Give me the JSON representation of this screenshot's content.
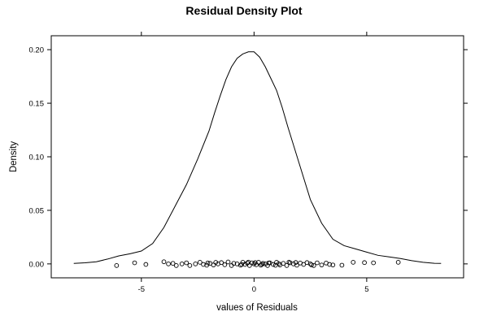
{
  "chart_data": {
    "type": "line",
    "title": "Residual Density Plot",
    "xlabel": "values of Residuals",
    "ylabel": "Density",
    "xlim": [
      -9,
      9.3
    ],
    "ylim": [
      -0.013,
      0.213
    ],
    "grid": false,
    "legend": "none",
    "x_ticks": [
      -5,
      0,
      5
    ],
    "x_tick_labels": [
      "-5",
      "0",
      "5"
    ],
    "y_ticks": [
      0,
      0.05,
      0.1,
      0.15,
      0.2
    ],
    "y_tick_labels": [
      "0.00",
      "0.05",
      "0.10",
      "0.15",
      "0.20"
    ],
    "series": [
      {
        "kind": "density-curve",
        "x": [
          -8.0,
          -7.5,
          -7.0,
          -6.5,
          -6.0,
          -5.5,
          -5.0,
          -4.5,
          -4.0,
          -3.5,
          -3.0,
          -2.5,
          -2.0,
          -1.75,
          -1.5,
          -1.25,
          -1.0,
          -0.75,
          -0.5,
          -0.25,
          0.0,
          0.25,
          0.5,
          0.75,
          1.0,
          1.25,
          1.5,
          1.75,
          2.0,
          2.5,
          3.0,
          3.5,
          4.0,
          4.5,
          5.0,
          5.5,
          6.0,
          6.5,
          7.0,
          7.5,
          8.0,
          8.3
        ],
        "y": [
          0.0005,
          0.001,
          0.002,
          0.0045,
          0.0075,
          0.0095,
          0.012,
          0.019,
          0.034,
          0.054,
          0.074,
          0.098,
          0.124,
          0.141,
          0.157,
          0.172,
          0.184,
          0.192,
          0.196,
          0.198,
          0.198,
          0.193,
          0.184,
          0.173,
          0.162,
          0.146,
          0.128,
          0.111,
          0.094,
          0.06,
          0.038,
          0.023,
          0.017,
          0.014,
          0.011,
          0.008,
          0.0065,
          0.005,
          0.003,
          0.0015,
          0.0006,
          0.0005
        ]
      },
      {
        "kind": "rug-points",
        "points": [
          [
            -6.1,
            -0.0015
          ],
          [
            -5.3,
            0.001
          ],
          [
            -4.8,
            -0.0005
          ],
          [
            -4.0,
            0.002
          ],
          [
            -3.8,
            0.0
          ],
          [
            -3.6,
            0.0005
          ],
          [
            -3.45,
            -0.0015
          ],
          [
            -3.2,
            0.0
          ],
          [
            -3.0,
            0.001
          ],
          [
            -2.85,
            -0.0015
          ],
          [
            -2.6,
            0.0
          ],
          [
            -2.4,
            0.0015
          ],
          [
            -2.25,
            -0.0005
          ],
          [
            -2.1,
            -0.0012
          ],
          [
            -1.95,
            0.0005
          ],
          [
            -1.8,
            -0.001
          ],
          [
            -1.6,
            0.0
          ],
          [
            -1.45,
            0.0012
          ],
          [
            -1.3,
            -0.0008
          ],
          [
            -1.15,
            0.0018
          ],
          [
            -1.0,
            -0.0015
          ],
          [
            -0.9,
            0.0005
          ],
          [
            -0.75,
            0.0
          ],
          [
            -0.6,
            -0.0012
          ],
          [
            -0.5,
            0.0015
          ],
          [
            -0.4,
            -0.0005
          ],
          [
            -0.3,
            0.0008
          ],
          [
            -0.2,
            -0.0015
          ],
          [
            -0.1,
            0.001
          ],
          [
            0.0,
            0.0
          ],
          [
            0.1,
            -0.0008
          ],
          [
            0.2,
            0.0015
          ],
          [
            0.3,
            -0.0012
          ],
          [
            0.4,
            0.0005
          ],
          [
            0.5,
            0.0
          ],
          [
            0.6,
            -0.0015
          ],
          [
            0.7,
            0.001
          ],
          [
            0.85,
            -0.0005
          ],
          [
            1.0,
            0.0015
          ],
          [
            1.15,
            -0.001
          ],
          [
            1.3,
            0.0005
          ],
          [
            1.45,
            -0.0015
          ],
          [
            1.6,
            0.001
          ],
          [
            1.75,
            0.0
          ],
          [
            1.9,
            -0.0012
          ],
          [
            2.05,
            0.0008
          ],
          [
            2.2,
            -0.0005
          ],
          [
            2.35,
            0.0012
          ],
          [
            2.5,
            0.0
          ],
          [
            2.65,
            -0.0015
          ],
          [
            2.8,
            0.001
          ],
          [
            3.0,
            -0.001
          ],
          [
            3.2,
            0.0008
          ],
          [
            3.35,
            -0.0005
          ],
          [
            3.5,
            -0.001
          ],
          [
            3.9,
            -0.0012
          ],
          [
            4.4,
            0.0015
          ],
          [
            4.9,
            0.0012
          ],
          [
            5.3,
            0.001
          ],
          [
            6.4,
            0.0015
          ],
          [
            -0.55,
            -0.0005
          ],
          [
            0.05,
            0.0012
          ],
          [
            0.35,
            -0.0004
          ],
          [
            0.65,
            0.0009
          ],
          [
            1.1,
            0.0002
          ],
          [
            1.85,
            0.0013
          ],
          [
            -1.7,
            0.0014
          ],
          [
            -2.05,
            0.0009
          ],
          [
            2.55,
            -0.0009
          ],
          [
            -0.25,
            0.0016
          ],
          [
            0.95,
            -0.0013
          ],
          [
            1.55,
            0.0016
          ]
        ]
      }
    ]
  }
}
